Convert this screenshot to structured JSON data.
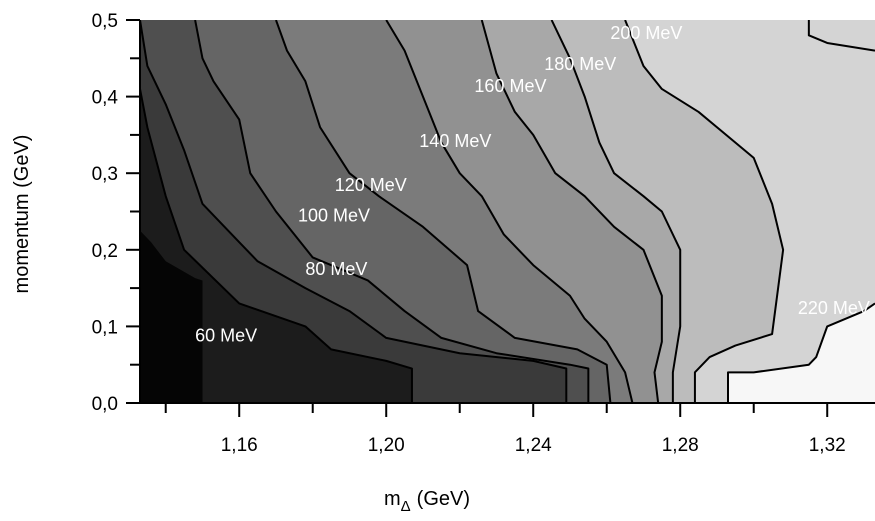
{
  "chart_data": {
    "type": "heatmap",
    "subtype": "filled-contour",
    "title": "",
    "xlabel": {
      "main": "m",
      "subscript": "Δ",
      "unit": "(GeV)"
    },
    "ylabel": "momentum (GeV)",
    "xlim": [
      1.133,
      1.333
    ],
    "ylim": [
      0.0,
      0.5
    ],
    "x_ticks": [
      {
        "value": 1.16,
        "label": "1,16"
      },
      {
        "value": 1.2,
        "label": "1,20"
      },
      {
        "value": 1.24,
        "label": "1,24"
      },
      {
        "value": 1.28,
        "label": "1,28"
      },
      {
        "value": 1.32,
        "label": "1,32"
      }
    ],
    "y_ticks": [
      {
        "value": 0.0,
        "label": "0,0"
      },
      {
        "value": 0.1,
        "label": "0,1"
      },
      {
        "value": 0.2,
        "label": "0,2"
      },
      {
        "value": 0.3,
        "label": "0,3"
      },
      {
        "value": 0.4,
        "label": "0,4"
      },
      {
        "value": 0.5,
        "label": "0,5"
      }
    ],
    "grid": false,
    "levels": [
      {
        "value": 60,
        "label": "60 MeV",
        "color": "#1c1c1c",
        "label_pos": [
          1.148,
          0.08
        ]
      },
      {
        "value": 80,
        "label": "80 MeV",
        "color": "#3a3a3a",
        "label_pos": [
          1.178,
          0.167
        ]
      },
      {
        "value": 100,
        "label": "100 MeV",
        "color": "#4f4f4f",
        "label_pos": [
          1.176,
          0.237
        ]
      },
      {
        "value": 120,
        "label": "120 MeV",
        "color": "#656565",
        "label_pos": [
          1.186,
          0.277
        ]
      },
      {
        "value": 140,
        "label": "140 MeV",
        "color": "#7b7b7b",
        "label_pos": [
          1.209,
          0.334
        ]
      },
      {
        "value": 160,
        "label": "160 MeV",
        "color": "#919191",
        "label_pos": [
          1.224,
          0.406
        ]
      },
      {
        "value": 180,
        "label": "180 MeV",
        "color": "#a8a8a8",
        "label_pos": [
          1.243,
          0.435
        ]
      },
      {
        "value": 200,
        "label": "200 MeV",
        "color": "#bcbcbc",
        "label_pos": [
          1.261,
          0.475
        ]
      },
      {
        "value": 220,
        "label": "220 MeV",
        "color": "#d4d4d4",
        "label_pos": [
          1.312,
          0.116
        ]
      }
    ],
    "region_colors": [
      "#050505",
      "#1c1c1c",
      "#3a3a3a",
      "#4f4f4f",
      "#656565",
      "#7b7b7b",
      "#919191",
      "#a8a8a8",
      "#bcbcbc",
      "#d4d4d4",
      "#f7f7f7"
    ],
    "contours": [
      {
        "level": "below-60",
        "points": [
          [
            1.133,
            0.0
          ],
          [
            1.15,
            0.0
          ],
          [
            1.15,
            0.16
          ],
          [
            1.148,
            0.163
          ],
          [
            1.14,
            0.185
          ],
          [
            1.136,
            0.21
          ],
          [
            1.133,
            0.225
          ]
        ]
      },
      {
        "level": 60,
        "points": [
          [
            1.207,
            0.0
          ],
          [
            1.207,
            0.045
          ],
          [
            1.2,
            0.055
          ],
          [
            1.185,
            0.07
          ],
          [
            1.178,
            0.1
          ],
          [
            1.16,
            0.13
          ],
          [
            1.145,
            0.2
          ],
          [
            1.14,
            0.27
          ],
          [
            1.135,
            0.36
          ],
          [
            1.133,
            0.41
          ]
        ]
      },
      {
        "level": 80,
        "points": [
          [
            1.249,
            0.0
          ],
          [
            1.249,
            0.045
          ],
          [
            1.24,
            0.055
          ],
          [
            1.22,
            0.065
          ],
          [
            1.2,
            0.085
          ],
          [
            1.19,
            0.12
          ],
          [
            1.178,
            0.15
          ],
          [
            1.165,
            0.185
          ],
          [
            1.16,
            0.21
          ],
          [
            1.15,
            0.26
          ],
          [
            1.145,
            0.33
          ],
          [
            1.14,
            0.39
          ],
          [
            1.135,
            0.44
          ],
          [
            1.133,
            0.5
          ]
        ]
      },
      {
        "level": 100,
        "points": [
          [
            1.255,
            0.0
          ],
          [
            1.255,
            0.045
          ],
          [
            1.25,
            0.05
          ],
          [
            1.23,
            0.065
          ],
          [
            1.215,
            0.085
          ],
          [
            1.205,
            0.12
          ],
          [
            1.195,
            0.16
          ],
          [
            1.18,
            0.19
          ],
          [
            1.17,
            0.25
          ],
          [
            1.163,
            0.3
          ],
          [
            1.16,
            0.37
          ],
          [
            1.153,
            0.42
          ],
          [
            1.15,
            0.45
          ],
          [
            1.148,
            0.5
          ]
        ]
      },
      {
        "level": 120,
        "points": [
          [
            1.261,
            0.0
          ],
          [
            1.26,
            0.05
          ],
          [
            1.252,
            0.07
          ],
          [
            1.235,
            0.085
          ],
          [
            1.225,
            0.12
          ],
          [
            1.222,
            0.18
          ],
          [
            1.21,
            0.23
          ],
          [
            1.198,
            0.27
          ],
          [
            1.19,
            0.3
          ],
          [
            1.182,
            0.36
          ],
          [
            1.178,
            0.42
          ],
          [
            1.173,
            0.46
          ],
          [
            1.17,
            0.5
          ]
        ]
      },
      {
        "level": 140,
        "points": [
          [
            1.267,
            0.0
          ],
          [
            1.265,
            0.04
          ],
          [
            1.26,
            0.08
          ],
          [
            1.254,
            0.11
          ],
          [
            1.25,
            0.14
          ],
          [
            1.24,
            0.18
          ],
          [
            1.232,
            0.22
          ],
          [
            1.226,
            0.27
          ],
          [
            1.22,
            0.3
          ],
          [
            1.215,
            0.34
          ],
          [
            1.21,
            0.4
          ],
          [
            1.205,
            0.46
          ],
          [
            1.2,
            0.5
          ]
        ]
      },
      {
        "level": 160,
        "points": [
          [
            1.274,
            0.0
          ],
          [
            1.273,
            0.04
          ],
          [
            1.275,
            0.08
          ],
          [
            1.275,
            0.14
          ],
          [
            1.27,
            0.2
          ],
          [
            1.262,
            0.23
          ],
          [
            1.254,
            0.27
          ],
          [
            1.246,
            0.3
          ],
          [
            1.24,
            0.35
          ],
          [
            1.235,
            0.38
          ],
          [
            1.23,
            0.43
          ],
          [
            1.226,
            0.5
          ]
        ]
      },
      {
        "level": 180,
        "points": [
          [
            1.278,
            0.0
          ],
          [
            1.278,
            0.04
          ],
          [
            1.28,
            0.1
          ],
          [
            1.28,
            0.2
          ],
          [
            1.275,
            0.25
          ],
          [
            1.27,
            0.27
          ],
          [
            1.262,
            0.3
          ],
          [
            1.258,
            0.34
          ],
          [
            1.254,
            0.4
          ],
          [
            1.25,
            0.45
          ],
          [
            1.245,
            0.5
          ]
        ]
      },
      {
        "level": 200,
        "points": [
          [
            1.284,
            0.0
          ],
          [
            1.284,
            0.04
          ],
          [
            1.288,
            0.06
          ],
          [
            1.295,
            0.075
          ],
          [
            1.305,
            0.09
          ],
          [
            1.308,
            0.2
          ],
          [
            1.305,
            0.26
          ],
          [
            1.3,
            0.32
          ],
          [
            1.29,
            0.36
          ],
          [
            1.285,
            0.38
          ],
          [
            1.275,
            0.41
          ],
          [
            1.27,
            0.44
          ],
          [
            1.265,
            0.5
          ]
        ]
      },
      {
        "level": 220,
        "points": [
          [
            1.293,
            0.0
          ],
          [
            1.293,
            0.04
          ],
          [
            1.3,
            0.04
          ],
          [
            1.315,
            0.05
          ],
          [
            1.317,
            0.06
          ],
          [
            1.32,
            0.1
          ],
          [
            1.33,
            0.12
          ],
          [
            1.333,
            0.13
          ]
        ]
      },
      {
        "level": "above-220",
        "points": [
          [
            1.315,
            0.5
          ],
          [
            1.315,
            0.48
          ],
          [
            1.32,
            0.47
          ],
          [
            1.333,
            0.46
          ]
        ]
      }
    ]
  }
}
